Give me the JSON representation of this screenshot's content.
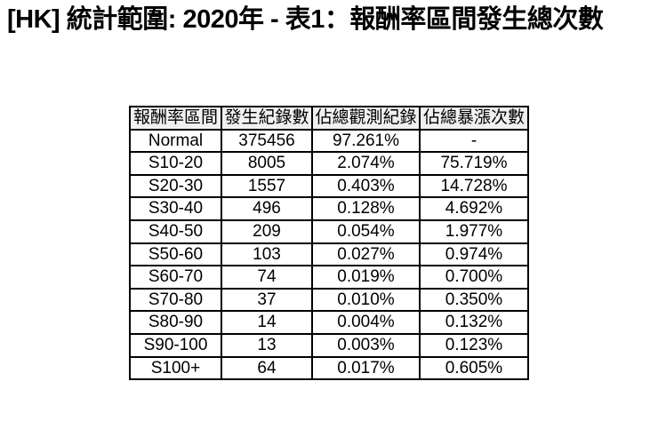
{
  "title": "[HK] 統計範圍: 2020年 - 表1：報酬率區間發生總次數",
  "colors": {
    "background": "#ffffff",
    "text": "#000000",
    "table_border": "#000000",
    "header_background": "#f0f0f0"
  },
  "chart_data": {
    "type": "table",
    "title": "[HK] 統計範圍: 2020年 - 表1：報酬率區間發生總次數",
    "columns": [
      "報酬率區間",
      "發生紀錄數",
      "佔總觀測紀錄",
      "佔總暴漲次數"
    ],
    "rows": [
      [
        "Normal",
        "375456",
        "97.261%",
        "-"
      ],
      [
        "S10-20",
        "8005",
        "2.074%",
        "75.719%"
      ],
      [
        "S20-30",
        "1557",
        "0.403%",
        "14.728%"
      ],
      [
        "S30-40",
        "496",
        "0.128%",
        "4.692%"
      ],
      [
        "S40-50",
        "209",
        "0.054%",
        "1.977%"
      ],
      [
        "S50-60",
        "103",
        "0.027%",
        "0.974%"
      ],
      [
        "S60-70",
        "74",
        "0.019%",
        "0.700%"
      ],
      [
        "S70-80",
        "37",
        "0.010%",
        "0.350%"
      ],
      [
        "S80-90",
        "14",
        "0.004%",
        "0.132%"
      ],
      [
        "S90-100",
        "13",
        "0.003%",
        "0.123%"
      ],
      [
        "S100+",
        "64",
        "0.017%",
        "0.605%"
      ]
    ]
  }
}
